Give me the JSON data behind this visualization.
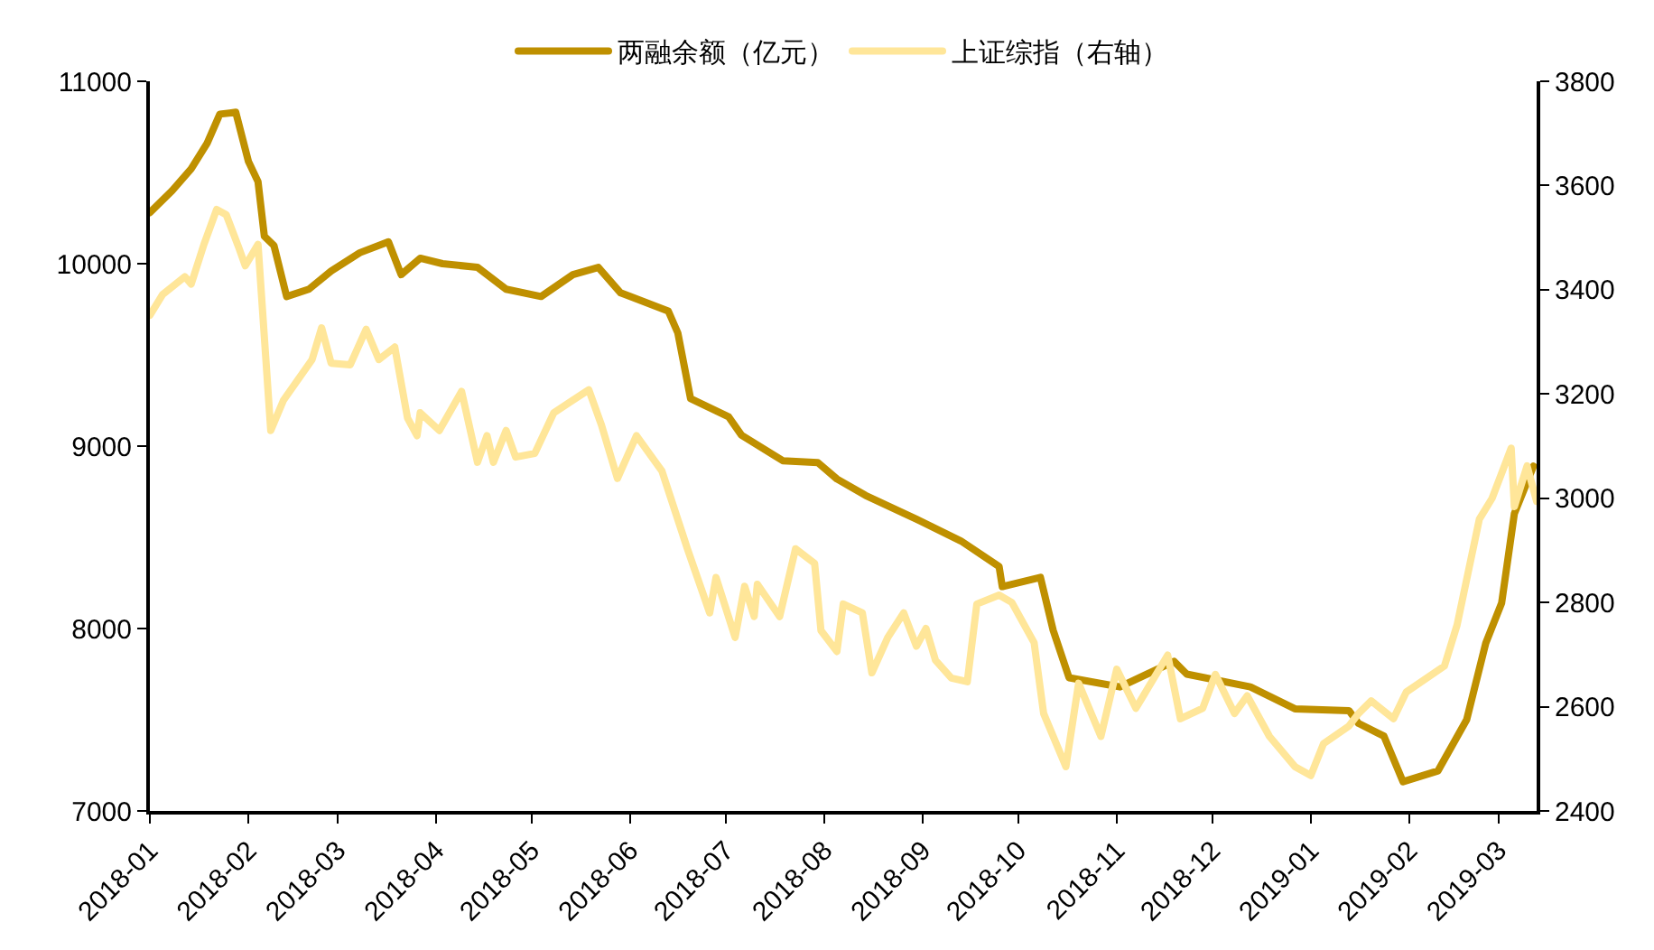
{
  "chart_data": {
    "type": "line",
    "x": [
      "2018-01-01",
      "2018-01-08",
      "2018-01-14",
      "2018-01-19",
      "2018-01-23",
      "2018-01-28",
      "2018-02-01",
      "2018-02-04",
      "2018-02-06",
      "2018-02-09",
      "2018-02-13",
      "2018-02-20",
      "2018-02-27",
      "2018-03-08",
      "2018-03-17",
      "2018-03-21",
      "2018-03-27",
      "2018-04-03",
      "2018-04-14",
      "2018-04-23",
      "2018-05-04",
      "2018-05-14",
      "2018-05-22",
      "2018-05-29",
      "2018-06-01",
      "2018-06-13",
      "2018-06-16",
      "2018-06-20",
      "2018-07-02",
      "2018-07-06",
      "2018-07-19",
      "2018-07-30",
      "2018-08-05",
      "2018-08-14",
      "2018-08-30",
      "2018-09-13",
      "2018-09-25",
      "2018-09-26",
      "2018-10-08",
      "2018-10-12",
      "2018-10-17",
      "2018-11-02",
      "2018-11-19",
      "2018-11-23",
      "2018-12-13",
      "2018-12-27",
      "2019-01-13",
      "2019-01-16",
      "2019-01-24",
      "2019-01-30",
      "2019-02-10",
      "2019-02-19",
      "2019-02-25",
      "2019-03-02",
      "2019-03-06",
      "2019-03-12"
    ],
    "series": [
      {
        "name": "两融余额（亿元）",
        "color": "#bf9000",
        "values": [
          10280,
          10400,
          10520,
          10660,
          10820,
          10830,
          10560,
          10450,
          10150,
          10100,
          9820,
          9860,
          9960,
          10060,
          10120,
          9940,
          10030,
          10000,
          9980,
          9860,
          9820,
          9940,
          9980,
          9840,
          9820,
          9740,
          9620,
          9260,
          9160,
          9060,
          8920,
          8910,
          8820,
          8730,
          8600,
          8480,
          8340,
          8230,
          8280,
          7990,
          7730,
          7680,
          7820,
          7750,
          7680,
          7560,
          7550,
          7480,
          7410,
          7160,
          7220,
          7500,
          7920,
          8140,
          8630,
          8890
        ]
      },
      {
        "name": "上证综指（右轴）",
        "color": "#ffe699",
        "axis": "y2",
        "x": [
          "2018-01-01",
          "2018-01-05",
          "2018-01-12",
          "2018-01-14",
          "2018-01-18",
          "2018-01-22",
          "2018-01-25",
          "2018-01-29",
          "2018-01-31",
          "2018-02-04",
          "2018-02-08",
          "2018-02-12",
          "2018-02-21",
          "2018-02-24",
          "2018-02-27",
          "2018-03-05",
          "2018-03-10",
          "2018-03-14",
          "2018-03-19",
          "2018-03-23",
          "2018-03-26",
          "2018-03-27",
          "2018-04-02",
          "2018-04-09",
          "2018-04-14",
          "2018-04-17",
          "2018-04-19",
          "2018-04-23",
          "2018-04-26",
          "2018-05-02",
          "2018-05-08",
          "2018-05-14",
          "2018-05-19",
          "2018-05-23",
          "2018-05-28",
          "2018-06-03",
          "2018-06-11",
          "2018-06-19",
          "2018-06-26",
          "2018-06-28",
          "2018-07-04",
          "2018-07-07",
          "2018-07-10",
          "2018-07-11",
          "2018-07-18",
          "2018-07-23",
          "2018-07-29",
          "2018-07-31",
          "2018-08-05",
          "2018-08-07",
          "2018-08-13",
          "2018-08-16",
          "2018-08-21",
          "2018-08-26",
          "2018-08-30",
          "2018-09-02",
          "2018-09-05",
          "2018-09-10",
          "2018-09-15",
          "2018-09-18",
          "2018-09-25",
          "2018-09-29",
          "2018-10-06",
          "2018-10-09",
          "2018-10-16",
          "2018-10-20",
          "2018-10-27",
          "2018-11-01",
          "2018-11-07",
          "2018-11-17",
          "2018-11-21",
          "2018-11-28",
          "2018-12-02",
          "2018-12-08",
          "2018-12-12",
          "2018-12-19",
          "2018-12-27",
          "2019-01-01",
          "2019-01-05",
          "2019-01-13",
          "2019-01-16",
          "2019-01-20",
          "2019-01-27",
          "2019-01-31",
          "2019-02-12",
          "2019-02-16",
          "2019-02-23",
          "2019-02-27",
          "2019-03-05",
          "2019-03-06",
          "2019-03-10",
          "2019-03-13"
        ],
        "values": [
          3351,
          3391,
          3425,
          3411,
          3487,
          3554,
          3544,
          3480,
          3446,
          3487,
          3130,
          3188,
          3266,
          3327,
          3259,
          3256,
          3324,
          3266,
          3290,
          3154,
          3120,
          3164,
          3130,
          3205,
          3069,
          3120,
          3069,
          3130,
          3079,
          3086,
          3164,
          3188,
          3208,
          3140,
          3038,
          3120,
          3052,
          2903,
          2780,
          2848,
          2733,
          2831,
          2773,
          2835,
          2773,
          2903,
          2875,
          2746,
          2706,
          2797,
          2780,
          2665,
          2733,
          2780,
          2716,
          2750,
          2689,
          2655,
          2648,
          2797,
          2814,
          2800,
          2723,
          2587,
          2485,
          2645,
          2543,
          2672,
          2597,
          2699,
          2577,
          2597,
          2662,
          2587,
          2621,
          2543,
          2485,
          2468,
          2529,
          2563,
          2587,
          2611,
          2577,
          2628,
          2678,
          2757,
          2960,
          3000,
          3096,
          2984,
          3062,
          2994
        ]
      }
    ],
    "xlim": [
      "2018-01-01",
      "2019-03-13"
    ],
    "xticks": [
      "2018-01",
      "2018-02",
      "2018-03",
      "2018-04",
      "2018-05",
      "2018-06",
      "2018-07",
      "2018-08",
      "2018-09",
      "2018-10",
      "2018-11",
      "2018-12",
      "2019-01",
      "2019-02",
      "2019-03"
    ],
    "ylim": [
      7000,
      11000
    ],
    "yticks": [
      7000,
      8000,
      9000,
      10000,
      11000
    ],
    "y2lim": [
      2400,
      3800
    ],
    "y2ticks": [
      2400,
      2600,
      2800,
      3000,
      3200,
      3400,
      3600,
      3800
    ],
    "legend": "top",
    "marker": "none",
    "line_style": "solid"
  }
}
